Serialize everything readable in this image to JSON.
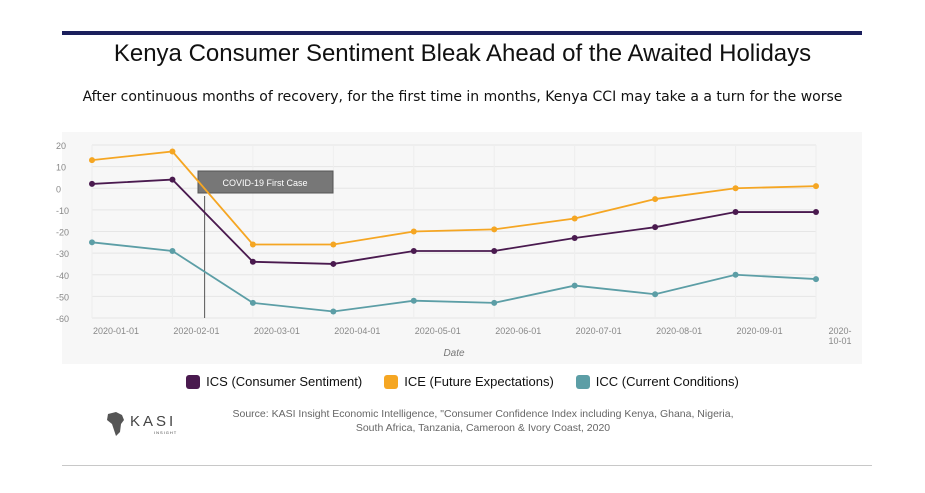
{
  "header": {
    "title": "Kenya Consumer Sentiment Bleak Ahead of the Awaited Holidays",
    "subtitle": "After continuous months of recovery, for the first time in months, Kenya CCI may take a a turn for the worse"
  },
  "footer": {
    "source": "Source: KASI Insight Economic Intelligence, \"Consumer Confidence Index including Kenya, Ghana, Nigeria, South Africa, Tanzania, Cameroon & Ivory Coast, 2020",
    "logo_text": "KASI",
    "logo_subtext": "INSIGHT"
  },
  "chart_data": {
    "type": "line",
    "title": "Kenya Consumer Sentiment Bleak Ahead of the Awaited Holidays",
    "xlabel": "Date",
    "ylabel": "",
    "ylim": [
      -60,
      20
    ],
    "yticks": [
      20,
      10,
      0,
      -10,
      -20,
      -30,
      -40,
      -50,
      -60
    ],
    "x": [
      "2020-01-01",
      "2020-02-01",
      "2020-03-01",
      "2020-04-01",
      "2020-05-01",
      "2020-06-01",
      "2020-07-01",
      "2020-08-01",
      "2020-09-01",
      "2020-10-01"
    ],
    "xtick_labels": [
      "2020-01-01",
      "2020-02-01",
      "2020-03-01",
      "2020-04-01",
      "2020-05-01",
      "2020-06-01",
      "2020-07-01",
      "2020-08-01",
      "2020-09-01",
      "2020-10-01"
    ],
    "grid": true,
    "legend_position": "bottom",
    "series": [
      {
        "name": "ICS (Consumer Sentiment)",
        "color": "#4a1a4f",
        "values": [
          2,
          4,
          -34,
          -35,
          -29,
          -29,
          -23,
          -18,
          -11,
          -11
        ]
      },
      {
        "name": "ICE (Future Expectations)",
        "color": "#f5a623",
        "values": [
          13,
          17,
          -26,
          -26,
          -20,
          -19,
          -14,
          -5,
          0,
          1
        ]
      },
      {
        "name": "ICC (Current Conditions)",
        "color": "#5c9ea6",
        "values": [
          -25,
          -29,
          -53,
          -57,
          -52,
          -53,
          -45,
          -49,
          -40,
          -42
        ]
      }
    ],
    "annotation": {
      "label": "COVID-19 First Case",
      "x_date": "2020-02-13"
    }
  }
}
